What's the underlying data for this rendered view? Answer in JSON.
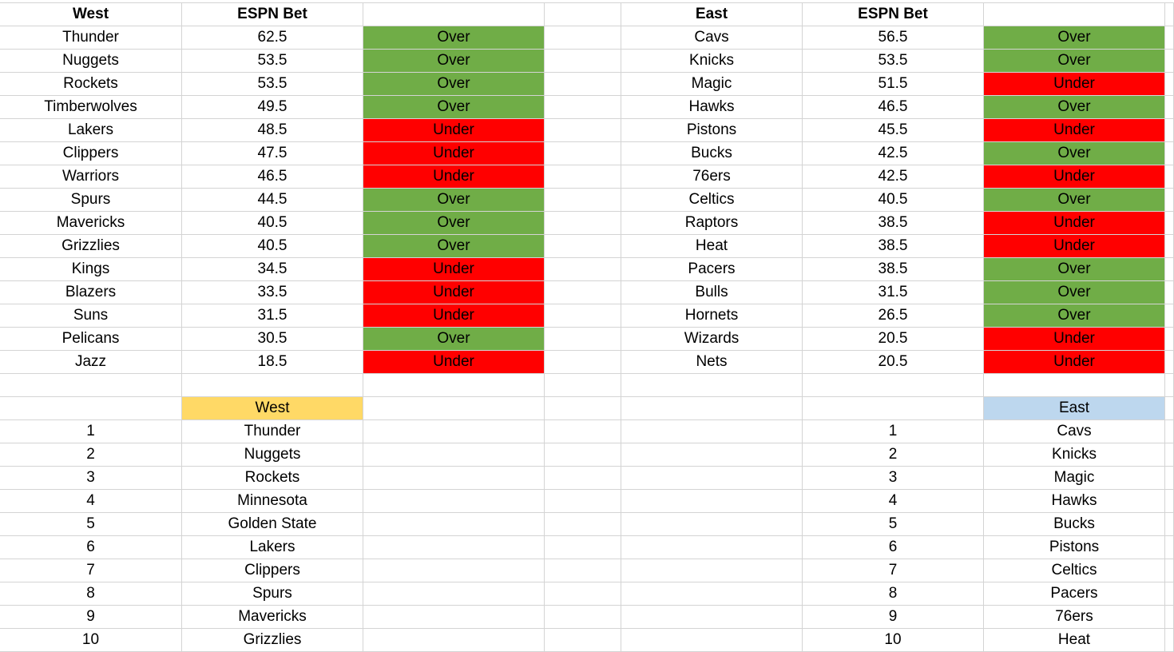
{
  "colors": {
    "over": "#70AD47",
    "under": "#FF0000",
    "west_header": "#FFD966",
    "east_header": "#BDD7EE"
  },
  "west": {
    "header": "West",
    "bet_header": "ESPN Bet",
    "rows": [
      {
        "team": "Thunder",
        "line": "62.5",
        "result": "Over"
      },
      {
        "team": "Nuggets",
        "line": "53.5",
        "result": "Over"
      },
      {
        "team": "Rockets",
        "line": "53.5",
        "result": "Over"
      },
      {
        "team": "Timberwolves",
        "line": "49.5",
        "result": "Over"
      },
      {
        "team": "Lakers",
        "line": "48.5",
        "result": "Under"
      },
      {
        "team": "Clippers",
        "line": "47.5",
        "result": "Under"
      },
      {
        "team": "Warriors",
        "line": "46.5",
        "result": "Under"
      },
      {
        "team": "Spurs",
        "line": "44.5",
        "result": "Over"
      },
      {
        "team": "Mavericks",
        "line": "40.5",
        "result": "Over"
      },
      {
        "team": "Grizzlies",
        "line": "40.5",
        "result": "Over"
      },
      {
        "team": "Kings",
        "line": "34.5",
        "result": "Under"
      },
      {
        "team": "Blazers",
        "line": "33.5",
        "result": "Under"
      },
      {
        "team": "Suns",
        "line": "31.5",
        "result": "Under"
      },
      {
        "team": "Pelicans",
        "line": "30.5",
        "result": "Over"
      },
      {
        "team": "Jazz",
        "line": "18.5",
        "result": "Under"
      }
    ],
    "ranking_header": "West",
    "ranking": [
      "Thunder",
      "Nuggets",
      "Rockets",
      "Minnesota",
      "Golden State",
      "Lakers",
      "Clippers",
      "Spurs",
      "Mavericks",
      "Grizzlies"
    ]
  },
  "east": {
    "header": "East",
    "bet_header": "ESPN Bet",
    "rows": [
      {
        "team": "Cavs",
        "line": "56.5",
        "result": "Over"
      },
      {
        "team": "Knicks",
        "line": "53.5",
        "result": "Over"
      },
      {
        "team": "Magic",
        "line": "51.5",
        "result": "Under"
      },
      {
        "team": "Hawks",
        "line": "46.5",
        "result": "Over"
      },
      {
        "team": "Pistons",
        "line": "45.5",
        "result": "Under"
      },
      {
        "team": "Bucks",
        "line": "42.5",
        "result": "Over"
      },
      {
        "team": "76ers",
        "line": "42.5",
        "result": "Under"
      },
      {
        "team": "Celtics",
        "line": "40.5",
        "result": "Over"
      },
      {
        "team": "Raptors",
        "line": "38.5",
        "result": "Under"
      },
      {
        "team": "Heat",
        "line": "38.5",
        "result": "Under"
      },
      {
        "team": "Pacers",
        "line": "38.5",
        "result": "Over"
      },
      {
        "team": "Bulls",
        "line": "31.5",
        "result": "Over"
      },
      {
        "team": "Hornets",
        "line": "26.5",
        "result": "Over"
      },
      {
        "team": "Wizards",
        "line": "20.5",
        "result": "Under"
      },
      {
        "team": "Nets",
        "line": "20.5",
        "result": "Under"
      }
    ],
    "ranking_header": "East",
    "ranking": [
      "Cavs",
      "Knicks",
      "Magic",
      "Hawks",
      "Bucks",
      "Pistons",
      "Celtics",
      "Pacers",
      "76ers",
      "Heat"
    ]
  },
  "rank_numbers": [
    "1",
    "2",
    "3",
    "4",
    "5",
    "6",
    "7",
    "8",
    "9",
    "10"
  ]
}
